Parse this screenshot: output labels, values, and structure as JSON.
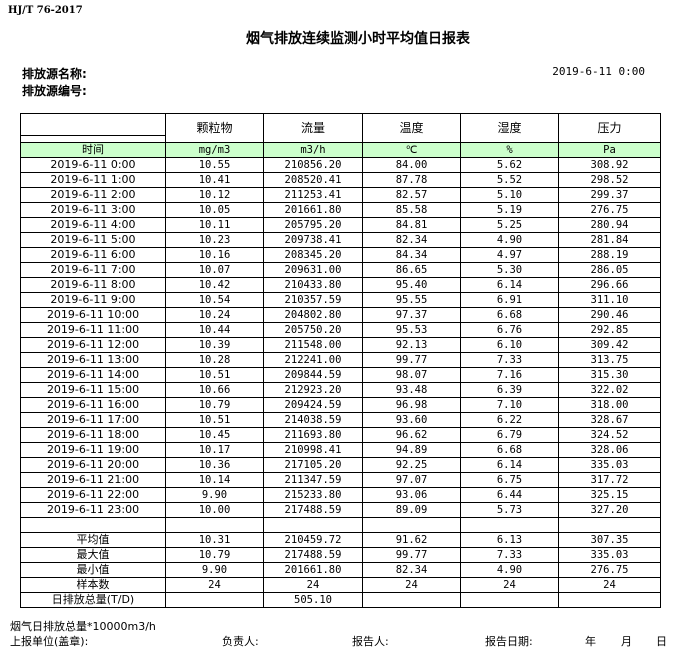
{
  "standard": "HJ/T  76-2017",
  "title": "烟气排放连续监测小时平均值日报表",
  "source_name_label": "排放源名称:",
  "source_id_label": "排放源编号:",
  "report_datetime": "2019-6-11 0:00",
  "table": {
    "columns": [
      "颗粒物",
      "流量",
      "温度",
      "湿度",
      "压力"
    ],
    "time_label": "时间",
    "units": [
      "mg/m3",
      "m3/h",
      "℃",
      "%",
      "Pa"
    ],
    "rows": [
      [
        "2019-6-11 0:00",
        "10.55",
        "210856.20",
        "84.00",
        "5.62",
        "308.92"
      ],
      [
        "2019-6-11 1:00",
        "10.41",
        "208520.41",
        "87.78",
        "5.52",
        "298.52"
      ],
      [
        "2019-6-11 2:00",
        "10.12",
        "211253.41",
        "82.57",
        "5.10",
        "299.37"
      ],
      [
        "2019-6-11 3:00",
        "10.05",
        "201661.80",
        "85.58",
        "5.19",
        "276.75"
      ],
      [
        "2019-6-11 4:00",
        "10.11",
        "205795.20",
        "84.81",
        "5.25",
        "280.94"
      ],
      [
        "2019-6-11 5:00",
        "10.23",
        "209738.41",
        "82.34",
        "4.90",
        "281.84"
      ],
      [
        "2019-6-11 6:00",
        "10.16",
        "208345.20",
        "84.34",
        "4.97",
        "288.19"
      ],
      [
        "2019-6-11 7:00",
        "10.07",
        "209631.00",
        "86.65",
        "5.30",
        "286.05"
      ],
      [
        "2019-6-11 8:00",
        "10.42",
        "210433.80",
        "95.40",
        "6.14",
        "296.66"
      ],
      [
        "2019-6-11 9:00",
        "10.54",
        "210357.59",
        "95.55",
        "6.91",
        "311.10"
      ],
      [
        "2019-6-11 10:00",
        "10.24",
        "204802.80",
        "97.37",
        "6.68",
        "290.46"
      ],
      [
        "2019-6-11 11:00",
        "10.44",
        "205750.20",
        "95.53",
        "6.76",
        "292.85"
      ],
      [
        "2019-6-11 12:00",
        "10.39",
        "211548.00",
        "92.13",
        "6.10",
        "309.42"
      ],
      [
        "2019-6-11 13:00",
        "10.28",
        "212241.00",
        "99.77",
        "7.33",
        "313.75"
      ],
      [
        "2019-6-11 14:00",
        "10.51",
        "209844.59",
        "98.07",
        "7.16",
        "315.30"
      ],
      [
        "2019-6-11 15:00",
        "10.66",
        "212923.20",
        "93.48",
        "6.39",
        "322.02"
      ],
      [
        "2019-6-11 16:00",
        "10.79",
        "209424.59",
        "96.98",
        "7.10",
        "318.00"
      ],
      [
        "2019-6-11 17:00",
        "10.51",
        "214038.59",
        "93.60",
        "6.22",
        "328.67"
      ],
      [
        "2019-6-11 18:00",
        "10.45",
        "211693.80",
        "96.62",
        "6.79",
        "324.52"
      ],
      [
        "2019-6-11 19:00",
        "10.17",
        "210998.41",
        "94.89",
        "6.68",
        "328.06"
      ],
      [
        "2019-6-11 20:00",
        "10.36",
        "217105.20",
        "92.25",
        "6.14",
        "335.03"
      ],
      [
        "2019-6-11 21:00",
        "10.14",
        "211347.59",
        "97.07",
        "6.75",
        "317.72"
      ],
      [
        "2019-6-11 22:00",
        "9.90",
        "215233.80",
        "93.06",
        "6.44",
        "325.15"
      ],
      [
        "2019-6-11 23:00",
        "10.00",
        "217488.59",
        "89.09",
        "5.73",
        "327.20"
      ]
    ],
    "stats": [
      [
        "平均值",
        "10.31",
        "210459.72",
        "91.62",
        "6.13",
        "307.35"
      ],
      [
        "最大值",
        "10.79",
        "217488.59",
        "99.77",
        "7.33",
        "335.03"
      ],
      [
        "最小值",
        "9.90",
        "201661.80",
        "82.34",
        "4.90",
        "276.75"
      ],
      [
        "样本数",
        "24",
        "24",
        "24",
        "24",
        "24"
      ],
      [
        "日排放总量(T/D)",
        "",
        "505.10",
        "",
        "",
        ""
      ]
    ]
  },
  "footer": {
    "note": "烟气日排放总量*10000m3/h",
    "unit_label": "上报单位(盖章):",
    "manager_label": "负责人:",
    "reporter_label": "报告人:",
    "date_label": "报告日期:",
    "year": "年",
    "month": "月",
    "day": "日"
  }
}
